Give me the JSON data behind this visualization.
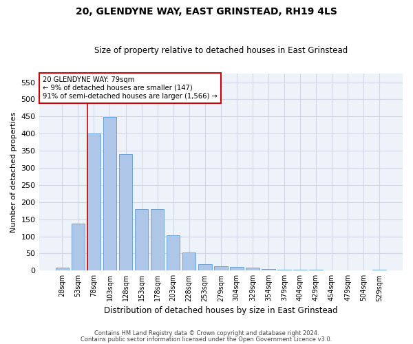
{
  "title": "20, GLENDYNE WAY, EAST GRINSTEAD, RH19 4LS",
  "subtitle": "Size of property relative to detached houses in East Grinstead",
  "xlabel": "Distribution of detached houses by size in East Grinstead",
  "ylabel": "Number of detached properties",
  "footer1": "Contains HM Land Registry data © Crown copyright and database right 2024.",
  "footer2": "Contains public sector information licensed under the Open Government Licence v3.0.",
  "annotation_line1": "20 GLENDYNE WAY: 79sqm",
  "annotation_line2": "← 9% of detached houses are smaller (147)",
  "annotation_line3": "91% of semi-detached houses are larger (1,566) →",
  "bar_categories": [
    "28sqm",
    "53sqm",
    "78sqm",
    "103sqm",
    "128sqm",
    "153sqm",
    "178sqm",
    "203sqm",
    "228sqm",
    "253sqm",
    "279sqm",
    "304sqm",
    "329sqm",
    "354sqm",
    "379sqm",
    "404sqm",
    "429sqm",
    "454sqm",
    "479sqm",
    "504sqm",
    "529sqm"
  ],
  "bar_values": [
    8,
    137,
    401,
    448,
    340,
    180,
    180,
    103,
    52,
    18,
    13,
    10,
    8,
    5,
    3,
    3,
    2,
    1,
    0,
    0,
    3
  ],
  "bar_color": "#aec6e8",
  "bar_edge_color": "#5b9bd5",
  "vline_color": "#cc0000",
  "vline_x": 1.575,
  "ylim": [
    0,
    575
  ],
  "yticks": [
    0,
    50,
    100,
    150,
    200,
    250,
    300,
    350,
    400,
    450,
    500,
    550
  ],
  "annotation_box_color": "#cc0000",
  "grid_color": "#d0d8e8",
  "bg_color": "#eef2f9"
}
